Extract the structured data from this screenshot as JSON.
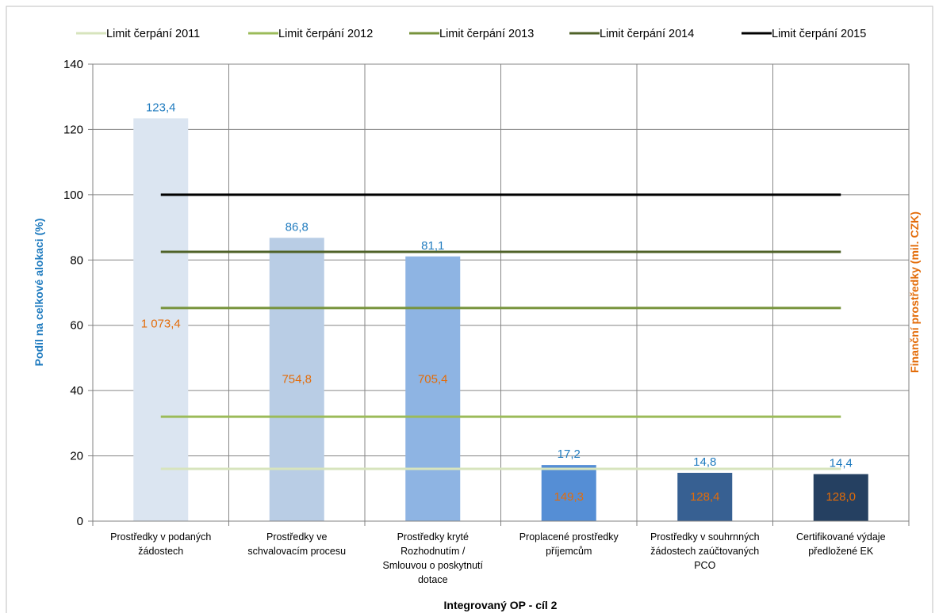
{
  "chart_data": {
    "type": "bar",
    "title": "",
    "xlabel": "Integrovaný OP - cíl 2",
    "ylabel": "Podíl na celkové alokaci (%)",
    "y2label": "Finanční prostředky (mil. CZK)",
    "ylim": [
      0,
      140
    ],
    "yticks": [
      0,
      20,
      40,
      60,
      80,
      100,
      120,
      140
    ],
    "grid": true,
    "legend_position": "top",
    "categories": [
      [
        "Prostředky v podaných",
        "žádostech"
      ],
      [
        "Prostředky ve",
        "schvalovacím procesu"
      ],
      [
        "Prostředky kryté",
        "Rozhodnutím /",
        "Smlouvou o poskytnutí",
        "dotace"
      ],
      [
        "Proplacené prostředky",
        "příjemcům"
      ],
      [
        "Prostředky v souhrnných",
        "žádostech zaúčtovaných",
        "PCO"
      ],
      [
        "Certifikované výdaje",
        "předložené EK"
      ]
    ],
    "values": [
      123.4,
      86.8,
      81.1,
      17.2,
      14.8,
      14.4
    ],
    "value_labels": [
      "123,4",
      "86,8",
      "81,1",
      "17,2",
      "14,8",
      "14,4"
    ],
    "secondary_labels": [
      "1 073,4",
      "754,8",
      "705,4",
      "149,3",
      "128,4",
      "128,0"
    ],
    "secondary_label_y": [
      60.5,
      43.5,
      43.5,
      7.5,
      7.5,
      7.5
    ],
    "bar_colors": [
      "#dbe5f1",
      "#b9cde5",
      "#8eb4e3",
      "#558ed5",
      "#376092",
      "#254061"
    ],
    "value_label_color": "#1f7bbf",
    "secondary_label_color": "#e36c09",
    "series": [
      {
        "name": "Limit čerpání 2011",
        "value": 16.0,
        "color": "#d7e4bd"
      },
      {
        "name": "Limit čerpání 2012",
        "value": 32.0,
        "color": "#9bbb59"
      },
      {
        "name": "Limit čerpání 2013",
        "value": 65.3,
        "color": "#77933c"
      },
      {
        "name": "Limit čerpání 2014",
        "value": 82.5,
        "color": "#4f6228"
      },
      {
        "name": "Limit čerpání 2015",
        "value": 100.0,
        "color": "#000000"
      }
    ]
  }
}
